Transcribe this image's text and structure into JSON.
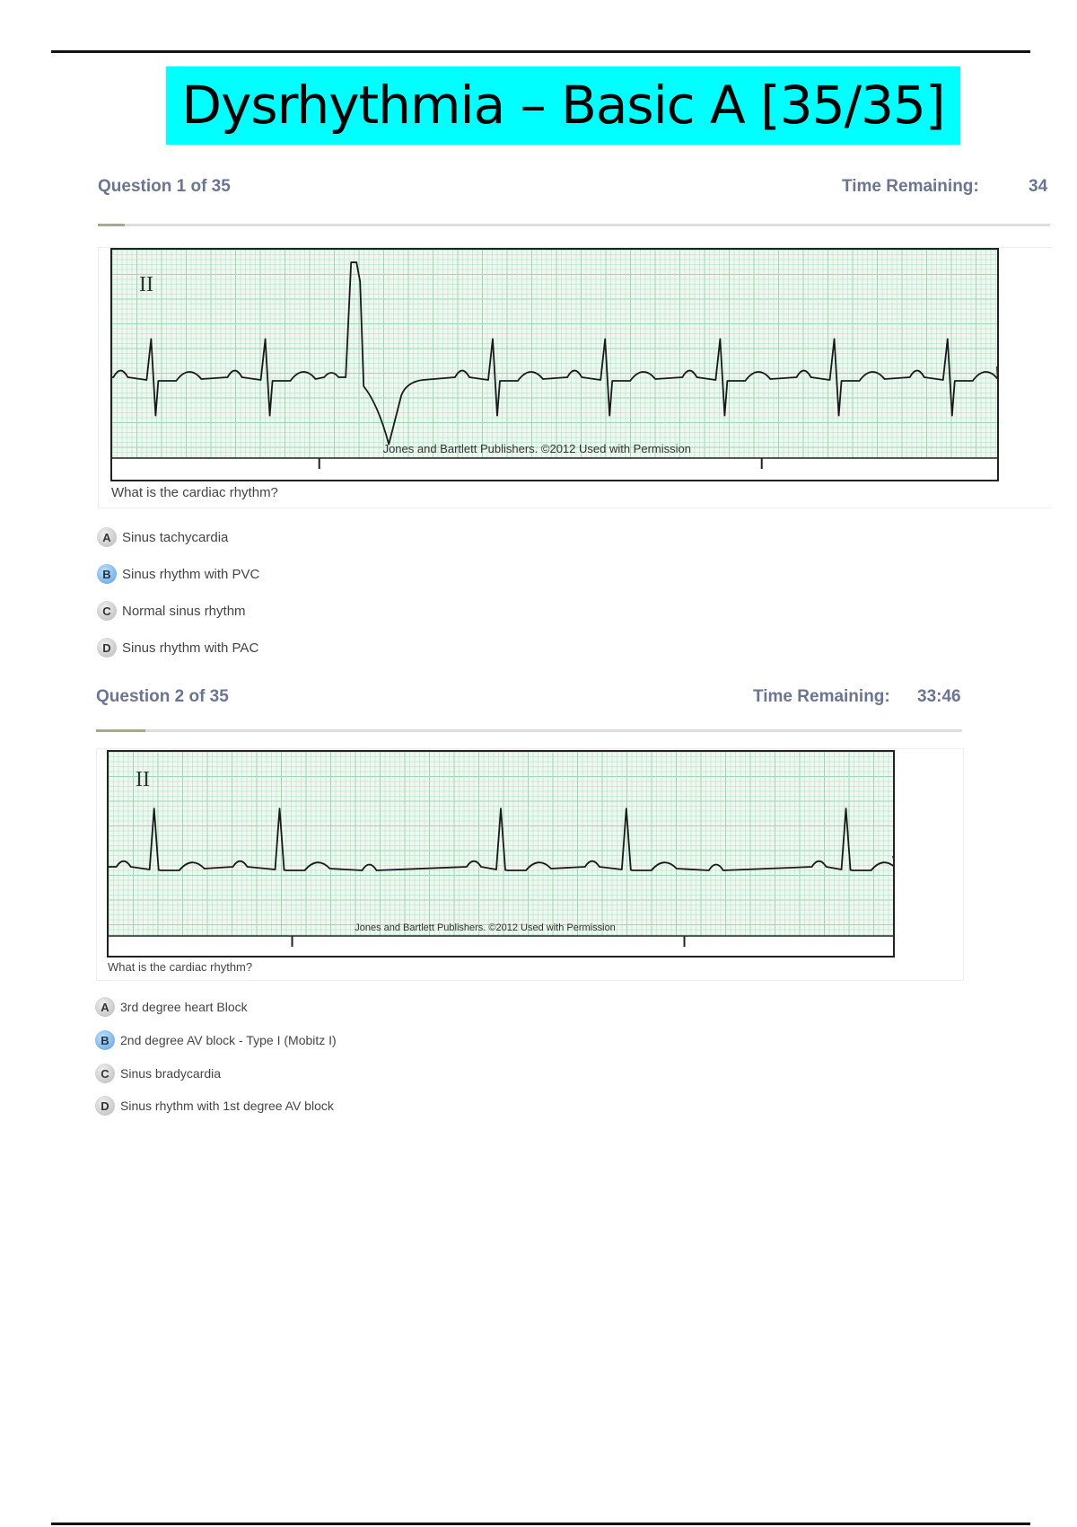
{
  "document_title": "Dysrhythmia – Basic A [35/35]",
  "colors": {
    "title_highlight": "#00ffff",
    "header_text": "#6b7591",
    "selected_option": "#5b9fe0",
    "ecg_grid": "#9fd6b4"
  },
  "questions": [
    {
      "header": "Question 1 of 35",
      "time_label": "Time Remaining:",
      "time_value": "34",
      "lead_label": "II",
      "credit": "Jones and Bartlett Publishers. ©2012 Used with Permission",
      "prompt": "What is the cardiac rhythm?",
      "selected": "B",
      "options": [
        {
          "letter": "A",
          "text": "Sinus tachycardia"
        },
        {
          "letter": "B",
          "text": "Sinus rhythm with PVC"
        },
        {
          "letter": "C",
          "text": "Normal sinus rhythm"
        },
        {
          "letter": "D",
          "text": "Sinus rhythm with PAC"
        }
      ]
    },
    {
      "header": "Question 2 of 35",
      "time_label": "Time Remaining:",
      "time_value": "33:46",
      "lead_label": "II",
      "credit": "Jones and Bartlett Publishers. ©2012 Used with Permission",
      "prompt": "What is the cardiac rhythm?",
      "selected": "B",
      "options": [
        {
          "letter": "A",
          "text": "3rd degree heart Block"
        },
        {
          "letter": "B",
          "text": "2nd degree AV block - Type I (Mobitz I)"
        },
        {
          "letter": "C",
          "text": "Sinus bradycardia"
        },
        {
          "letter": "D",
          "text": "Sinus rhythm with 1st degree AV block"
        }
      ]
    }
  ]
}
